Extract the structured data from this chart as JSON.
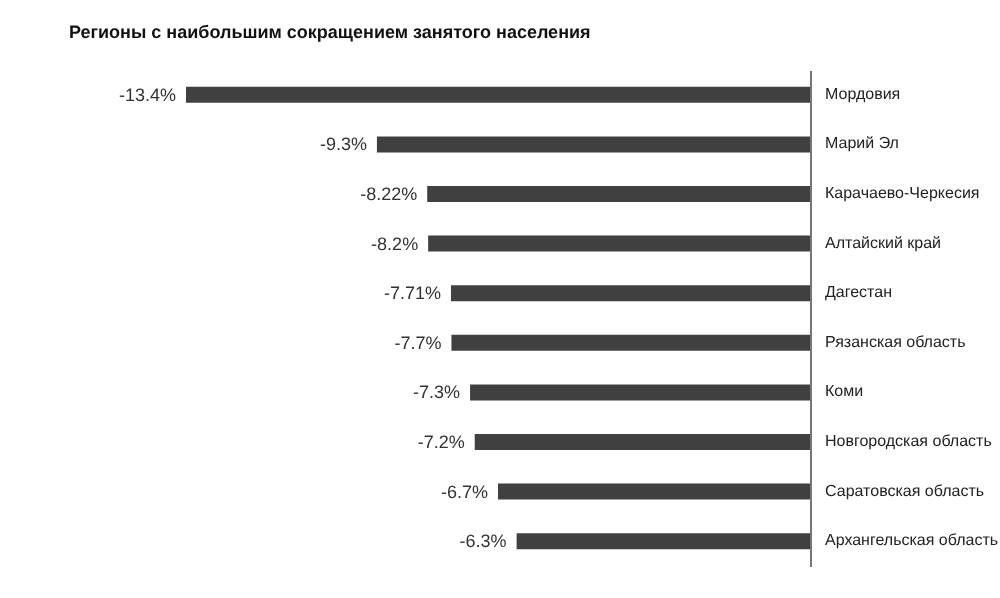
{
  "chart_data": {
    "type": "bar",
    "orientation": "horizontal",
    "title": "Регионы с наибольшим сокращением занятого населения",
    "categories": [
      "Мордовия",
      "Марий Эл",
      "Карачаево-Черкесия",
      "Алтайский край",
      "Дагестан",
      "Рязанская область",
      "Коми",
      "Новгородская область",
      "Саратовская область",
      "Архангельская область"
    ],
    "values": [
      -13.4,
      -9.3,
      -8.22,
      -8.2,
      -7.71,
      -7.7,
      -7.3,
      -7.2,
      -6.7,
      -6.3
    ],
    "value_labels": [
      "-13.4%",
      "-9.3%",
      "-8.22%",
      "-8.2%",
      "-7.71%",
      "-7.7%",
      "-7.3%",
      "-7.2%",
      "-6.7%",
      "-6.3%"
    ],
    "color": "#404040"
  }
}
